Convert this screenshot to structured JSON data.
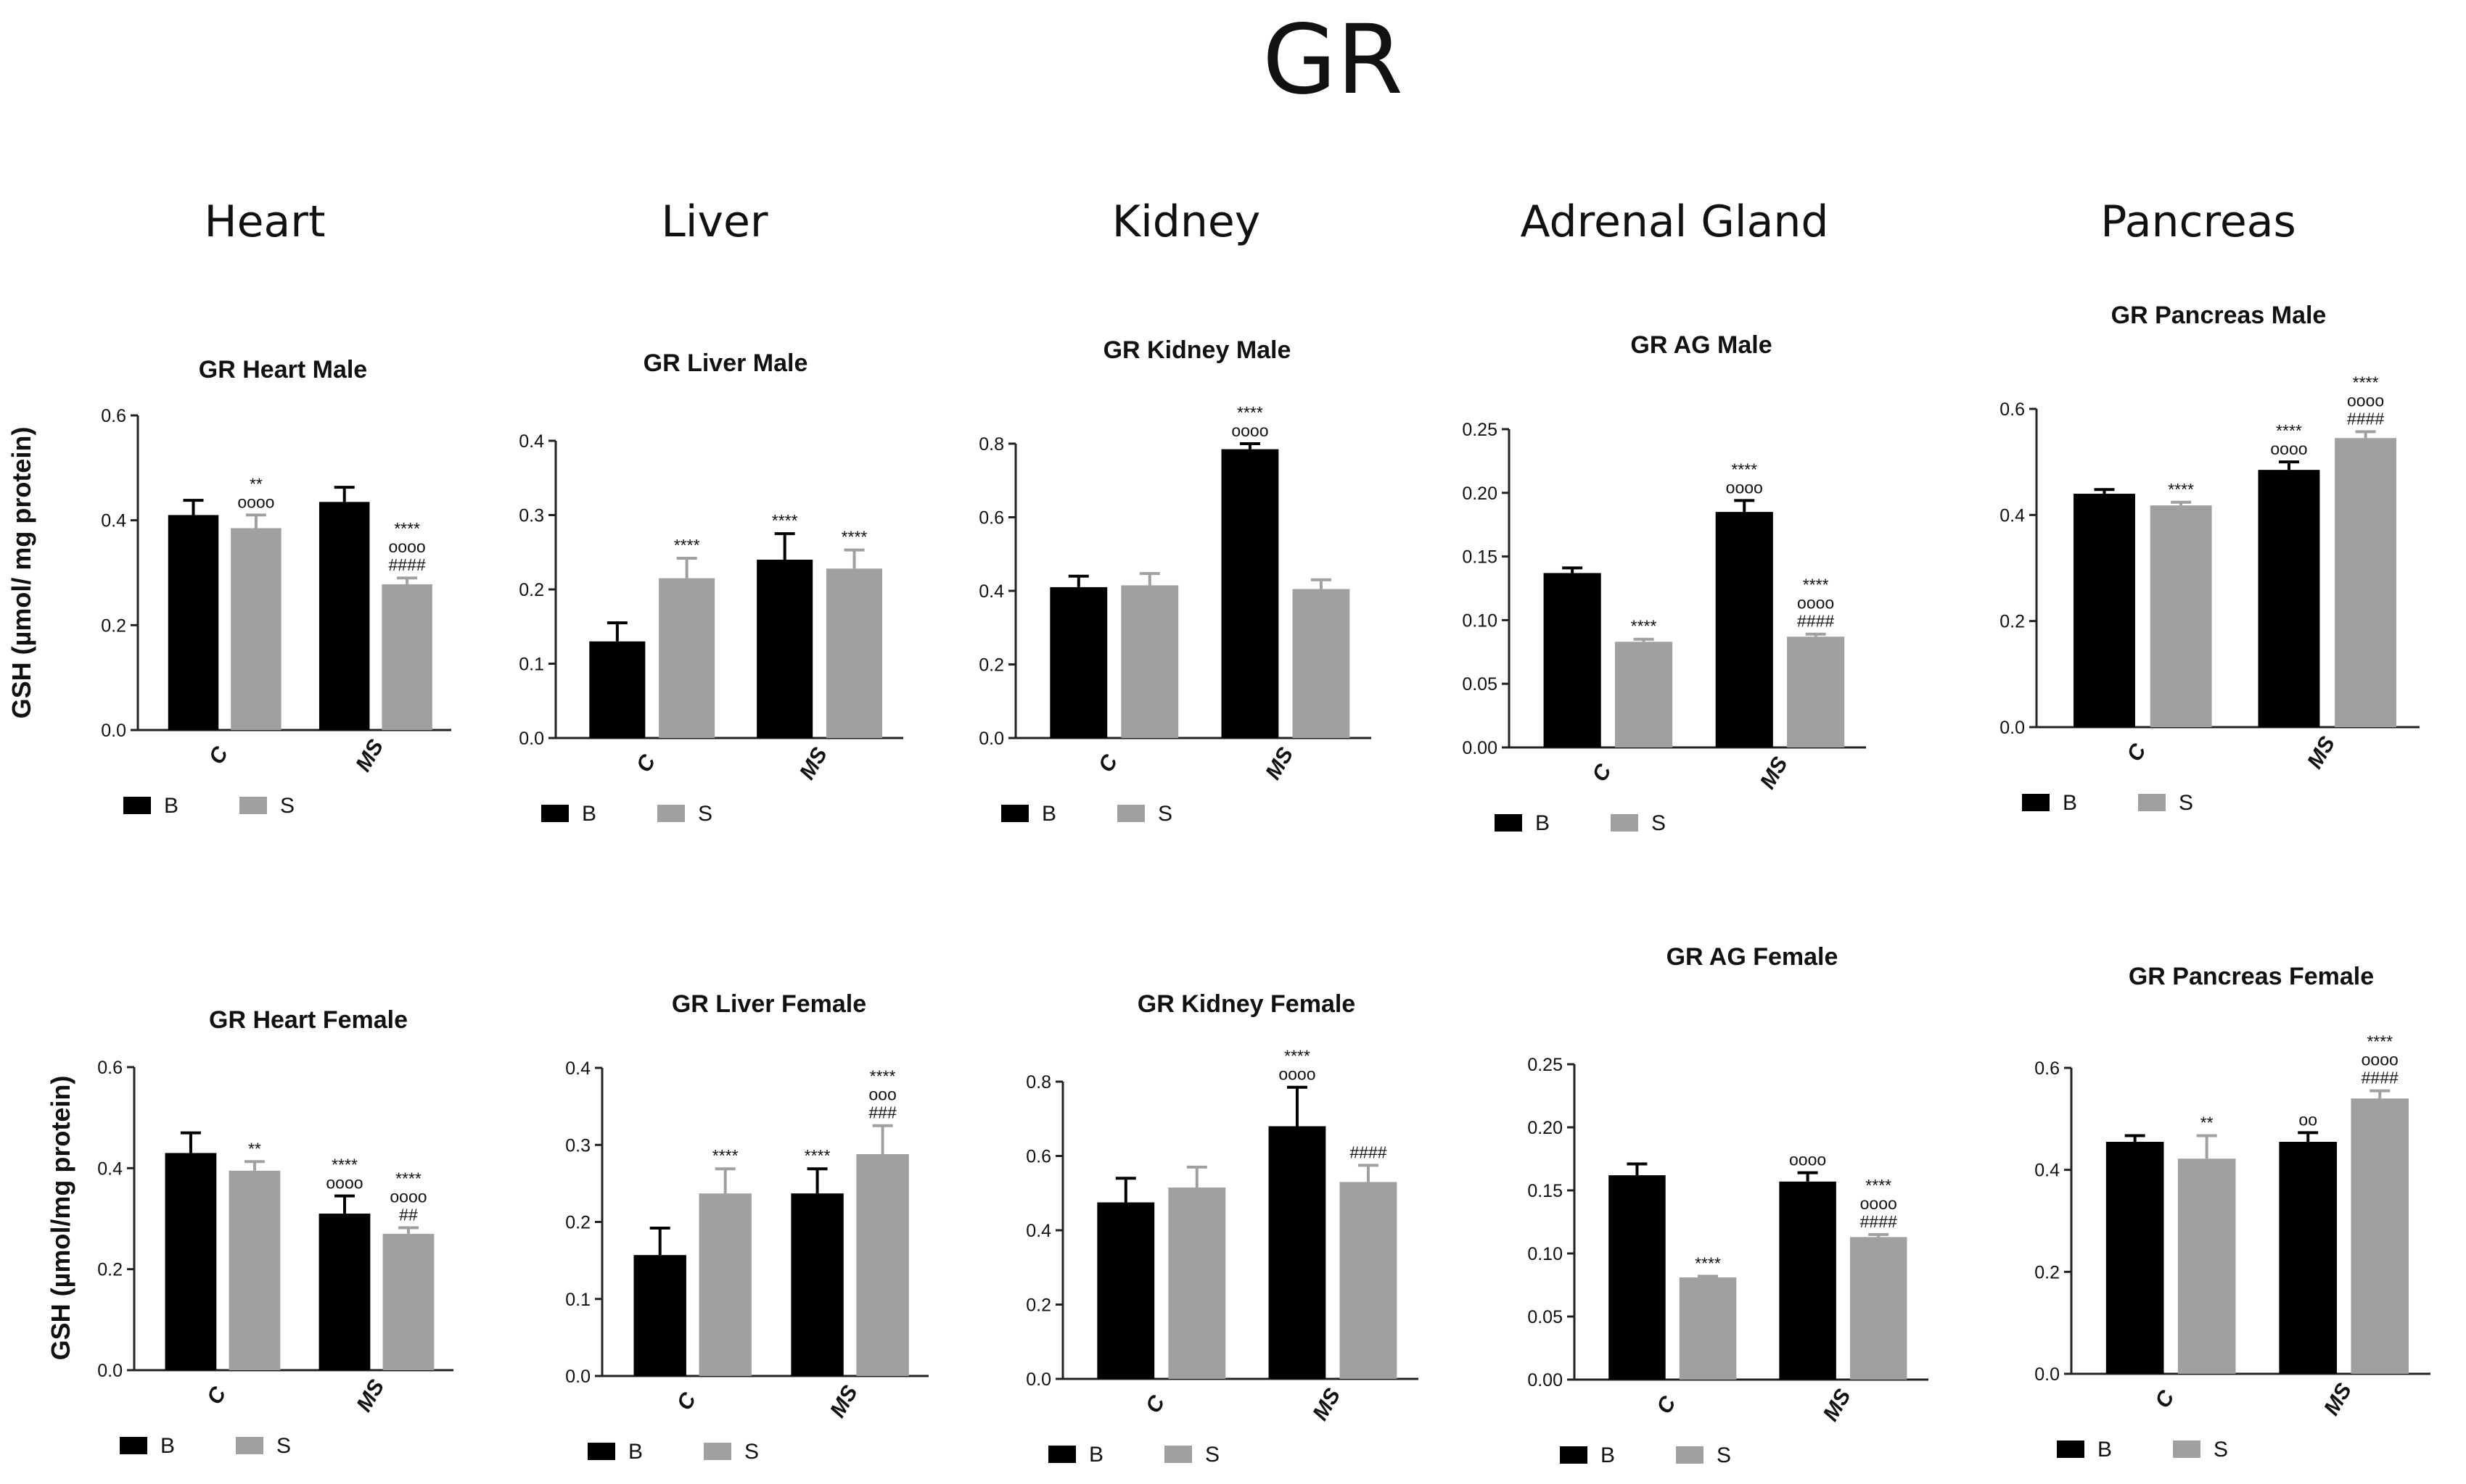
{
  "page": {
    "title": "GR",
    "organs": [
      "Heart",
      "Liver",
      "Kidney",
      "Adrenal Gland",
      "Pancreas"
    ]
  },
  "colors": {
    "B": "#000000",
    "S": "#a0a0a0",
    "axis": "#222222",
    "text": "#111111"
  },
  "chart_data": [
    {
      "type": "bar",
      "title": "GR Heart Male",
      "ylabel": "GSH (µmol/ mg protein)",
      "categories": [
        "C",
        "MS"
      ],
      "ylim": [
        0,
        0.6
      ],
      "yticks": [
        "0.0",
        "0.2",
        "0.4",
        "0.6"
      ],
      "series": [
        {
          "name": "B",
          "values": [
            0.41,
            0.435
          ],
          "errors": [
            0.028,
            0.028
          ]
        },
        {
          "name": "S",
          "values": [
            0.385,
            0.278
          ],
          "errors": [
            0.025,
            0.012
          ]
        }
      ],
      "annotations": [
        [
          "",
          "**\noooo"
        ],
        [
          "",
          "****\noooo\n####"
        ]
      ]
    },
    {
      "type": "bar",
      "title": "GR Liver Male",
      "ylabel": "",
      "categories": [
        "C",
        "MS"
      ],
      "ylim": [
        0,
        0.4
      ],
      "yticks": [
        "0.0",
        "0.1",
        "0.2",
        "0.3",
        "0.4"
      ],
      "series": [
        {
          "name": "B",
          "values": [
            0.13,
            0.24
          ],
          "errors": [
            0.025,
            0.035
          ]
        },
        {
          "name": "S",
          "values": [
            0.215,
            0.228
          ],
          "errors": [
            0.027,
            0.025
          ]
        }
      ],
      "annotations": [
        [
          "",
          "****"
        ],
        [
          "****",
          "****"
        ]
      ]
    },
    {
      "type": "bar",
      "title": "GR Kidney Male",
      "ylabel": "",
      "categories": [
        "C",
        "MS"
      ],
      "ylim": [
        0,
        0.8
      ],
      "yticks": [
        "0.0",
        "0.2",
        "0.4",
        "0.6",
        "0.8"
      ],
      "series": [
        {
          "name": "B",
          "values": [
            0.41,
            0.785
          ],
          "errors": [
            0.03,
            0.015
          ]
        },
        {
          "name": "S",
          "values": [
            0.415,
            0.405
          ],
          "errors": [
            0.032,
            0.025
          ]
        }
      ],
      "annotations": [
        [
          "",
          ""
        ],
        [
          "****\noooo",
          ""
        ]
      ]
    },
    {
      "type": "bar",
      "title": "GR AG Male",
      "ylabel": "",
      "categories": [
        "C",
        "MS"
      ],
      "ylim": [
        0,
        0.25
      ],
      "yticks": [
        "0.00",
        "0.05",
        "0.10",
        "0.15",
        "0.20",
        "0.25"
      ],
      "series": [
        {
          "name": "B",
          "values": [
            0.137,
            0.185
          ],
          "errors": [
            0.004,
            0.009
          ]
        },
        {
          "name": "S",
          "values": [
            0.083,
            0.087
          ],
          "errors": [
            0.002,
            0.002
          ]
        }
      ],
      "annotations": [
        [
          "",
          "****"
        ],
        [
          "****\noooo",
          "****\noooo\n####"
        ]
      ]
    },
    {
      "type": "bar",
      "title": "GR Pancreas  Male",
      "ylabel": "",
      "categories": [
        "C",
        "MS"
      ],
      "ylim": [
        0,
        0.6
      ],
      "yticks": [
        "0.0",
        "0.2",
        "0.4",
        "0.6"
      ],
      "series": [
        {
          "name": "B",
          "values": [
            0.44,
            0.485
          ],
          "errors": [
            0.008,
            0.015
          ]
        },
        {
          "name": "S",
          "values": [
            0.418,
            0.545
          ],
          "errors": [
            0.006,
            0.012
          ]
        }
      ],
      "annotations": [
        [
          "",
          "****"
        ],
        [
          "****\noooo",
          "****\noooo\n####"
        ]
      ]
    },
    {
      "type": "bar",
      "title": "GR Heart Female",
      "ylabel": "GSH (µmol/mg protein)",
      "categories": [
        "C",
        "MS"
      ],
      "ylim": [
        0,
        0.6
      ],
      "yticks": [
        "0.0",
        "0.2",
        "0.4",
        "0.6"
      ],
      "series": [
        {
          "name": "B",
          "values": [
            0.43,
            0.31
          ],
          "errors": [
            0.04,
            0.035
          ]
        },
        {
          "name": "S",
          "values": [
            0.395,
            0.27
          ],
          "errors": [
            0.018,
            0.012
          ]
        }
      ],
      "annotations": [
        [
          "",
          "**"
        ],
        [
          "****\noooo",
          "****\noooo\n##"
        ]
      ]
    },
    {
      "type": "bar",
      "title": "GR Liver Female",
      "ylabel": "",
      "categories": [
        "C",
        "MS"
      ],
      "ylim": [
        0,
        0.4
      ],
      "yticks": [
        "0.0",
        "0.1",
        "0.2",
        "0.3",
        "0.4"
      ],
      "series": [
        {
          "name": "B",
          "values": [
            0.157,
            0.237
          ],
          "errors": [
            0.035,
            0.032
          ]
        },
        {
          "name": "S",
          "values": [
            0.237,
            0.288
          ],
          "errors": [
            0.032,
            0.037
          ]
        }
      ],
      "annotations": [
        [
          "",
          "****"
        ],
        [
          "****",
          "****\nooo\n###"
        ]
      ]
    },
    {
      "type": "bar",
      "title": "GR Kidney Female",
      "ylabel": "",
      "categories": [
        "C",
        "MS"
      ],
      "ylim": [
        0,
        0.8
      ],
      "yticks": [
        "0.0",
        "0.2",
        "0.4",
        "0.6",
        "0.8"
      ],
      "series": [
        {
          "name": "B",
          "values": [
            0.475,
            0.68
          ],
          "errors": [
            0.065,
            0.105
          ]
        },
        {
          "name": "S",
          "values": [
            0.515,
            0.53
          ],
          "errors": [
            0.055,
            0.045
          ]
        }
      ],
      "annotations": [
        [
          "",
          ""
        ],
        [
          "****\noooo",
          "####"
        ]
      ]
    },
    {
      "type": "bar",
      "title": "GR AG Female",
      "ylabel": "",
      "categories": [
        "C",
        "MS"
      ],
      "ylim": [
        0,
        0.25
      ],
      "yticks": [
        "0.00",
        "0.05",
        "0.10",
        "0.15",
        "0.20",
        "0.25"
      ],
      "series": [
        {
          "name": "B",
          "values": [
            0.162,
            0.157
          ],
          "errors": [
            0.009,
            0.007
          ]
        },
        {
          "name": "S",
          "values": [
            0.081,
            0.113
          ],
          "errors": [
            0.001,
            0.002
          ]
        }
      ],
      "annotations": [
        [
          "",
          "****"
        ],
        [
          "oooo",
          "****\noooo\n####"
        ]
      ]
    },
    {
      "type": "bar",
      "title": "GR Pancreas  Female",
      "ylabel": "",
      "categories": [
        "C",
        "MS"
      ],
      "ylim": [
        0,
        0.6
      ],
      "yticks": [
        "0.0",
        "0.2",
        "0.4",
        "0.6"
      ],
      "series": [
        {
          "name": "B",
          "values": [
            0.455,
            0.455
          ],
          "errors": [
            0.012,
            0.018
          ]
        },
        {
          "name": "S",
          "values": [
            0.422,
            0.54
          ],
          "errors": [
            0.045,
            0.015
          ]
        }
      ],
      "annotations": [
        [
          "",
          "**"
        ],
        [
          "oo",
          "****\noooo\n####"
        ]
      ]
    }
  ]
}
